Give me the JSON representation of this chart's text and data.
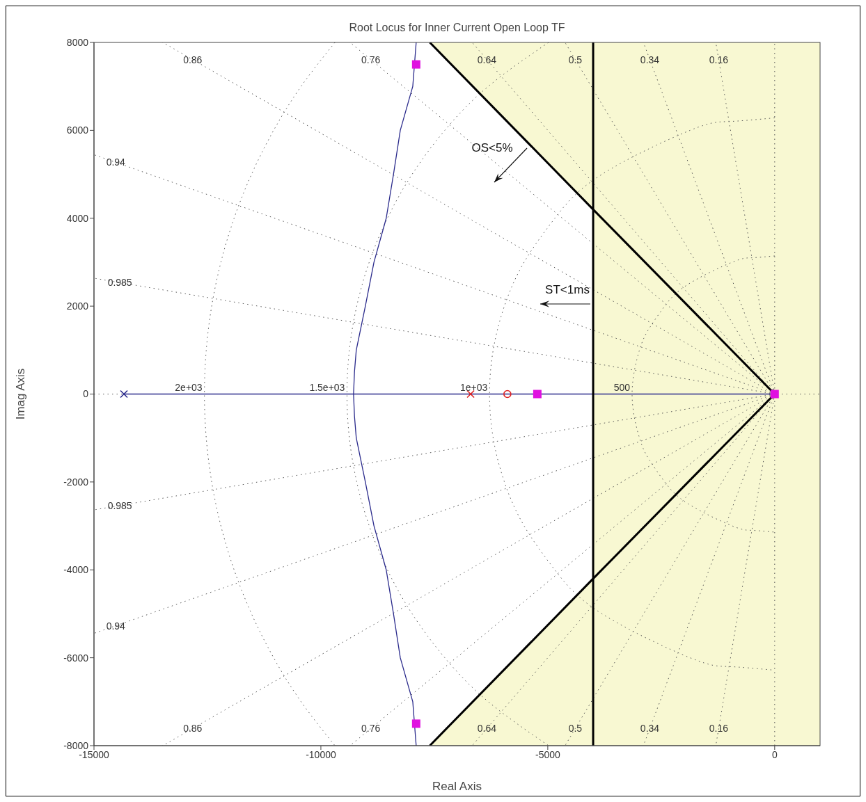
{
  "chart_data": {
    "type": "line",
    "title": "Root Locus for Inner Current Open Loop TF",
    "xlabel": "Real Axis",
    "ylabel": "Imag Axis",
    "xlim": [
      -15000,
      1000
    ],
    "xticks": [
      -15000,
      -10000,
      -5000,
      0
    ],
    "ylim": [
      -8000,
      8000
    ],
    "yticks": [
      -8000,
      -6000,
      -4000,
      -2000,
      0,
      2000,
      4000,
      6000,
      8000
    ],
    "series": [
      {
        "name": "0.86",
        "color": "#555555",
        "line_style": "dotted",
        "x": [
          0,
          -12825,
          -13482
        ],
        "values": [
          0,
          7610,
          8000
        ]
      },
      {
        "name": "0.76",
        "color": "#555555",
        "line_style": "dotted",
        "x": [
          0,
          -8901,
          -9357
        ],
        "values": [
          0,
          7610,
          8000
        ]
      },
      {
        "name": "0.64",
        "color": "#555555",
        "line_style": "dotted",
        "x": [
          0,
          -6342,
          -6667
        ],
        "values": [
          0,
          7610,
          8000
        ]
      },
      {
        "name": "0.5",
        "color": "#555555",
        "line_style": "dotted",
        "x": [
          0,
          -4394,
          -4619
        ],
        "values": [
          0,
          7610,
          8000
        ]
      },
      {
        "name": "0.34",
        "color": "#555555",
        "line_style": "dotted",
        "x": [
          0,
          -2751,
          -2892
        ],
        "values": [
          0,
          7610,
          8000
        ]
      },
      {
        "name": "0.16",
        "color": "#555555",
        "line_style": "dotted",
        "x": [
          0,
          -1234,
          -1297
        ],
        "values": [
          0,
          7610,
          8000
        ]
      },
      {
        "name": "0.94",
        "color": "#555555",
        "line_style": "dotted",
        "x": [
          0,
          -14520,
          -15000
        ],
        "values": [
          0,
          5271,
          5445
        ]
      },
      {
        "name": "0.985",
        "color": "#555555",
        "line_style": "dotted",
        "x": [
          0,
          -14430,
          -15000
        ],
        "values": [
          0,
          2536,
          2636
        ]
      },
      {
        "name": "0.985",
        "color": "#555555",
        "line_style": "dotted",
        "x": [
          0,
          -14430,
          -15000
        ],
        "values": [
          0,
          -2536,
          -2636
        ]
      },
      {
        "name": "0.94",
        "color": "#555555",
        "line_style": "dotted",
        "x": [
          0,
          -14520,
          -15000
        ],
        "values": [
          0,
          -5271,
          -5445
        ]
      },
      {
        "name": "0.86",
        "color": "#555555",
        "line_style": "dotted",
        "x": [
          0,
          -12825,
          -13482
        ],
        "values": [
          0,
          -7610,
          -8000
        ]
      },
      {
        "name": "0.76",
        "color": "#555555",
        "line_style": "dotted",
        "x": [
          0,
          -8901,
          -9357
        ],
        "values": [
          0,
          -7610,
          -8000
        ]
      },
      {
        "name": "0.64",
        "color": "#555555",
        "line_style": "dotted",
        "x": [
          0,
          -6342,
          -6667
        ],
        "values": [
          0,
          -7610,
          -8000
        ]
      },
      {
        "name": "0.5",
        "color": "#555555",
        "line_style": "dotted",
        "x": [
          0,
          -4394,
          -4619
        ],
        "values": [
          0,
          -7610,
          -8000
        ]
      },
      {
        "name": "0.34",
        "color": "#555555",
        "line_style": "dotted",
        "x": [
          0,
          -2751,
          -2892
        ],
        "values": [
          0,
          -7610,
          -8000
        ]
      },
      {
        "name": "0.16",
        "color": "#555555",
        "line_style": "dotted",
        "x": [
          0,
          -1234,
          -1297
        ],
        "values": [
          0,
          -7610,
          -8000
        ]
      },
      {
        "name": "2e+03",
        "color": "#555555",
        "line_style": "dotted",
        "x": [
          -9690,
          -10436,
          -11041,
          -11528,
          -11912,
          -12203,
          -12406,
          -12526,
          -12566,
          -12526,
          -12406,
          -12203,
          -11912,
          -11528,
          -11041,
          -10436,
          -9690
        ],
        "values": [
          8000,
          7000,
          6000,
          5000,
          4000,
          3000,
          2000,
          1000,
          0,
          -1000,
          -2000,
          -3000,
          -4000,
          -5000,
          -6000,
          -7000,
          -8000
        ]
      },
      {
        "name": "1.5e+03",
        "color": "#555555",
        "line_style": "dotted",
        "x": [
          -4983,
          -6311,
          -7269,
          -7989,
          -8534,
          -8935,
          -9210,
          -9372,
          -9425,
          -9372,
          -9210,
          -8935,
          -8534,
          -7989,
          -7269,
          -6311,
          -4983
        ],
        "values": [
          8000,
          7000,
          6000,
          5000,
          4000,
          3000,
          2000,
          1000,
          0,
          -1000,
          -2000,
          -3000,
          -4000,
          -5000,
          -6000,
          -7000,
          -8000
        ]
      },
      {
        "name": "1e+03",
        "color": "#555555",
        "line_style": "dotted",
        "x": [
          0,
          -1018,
          -1864,
          -3805,
          -4845,
          -5521,
          -5956,
          -6203,
          -6283,
          -6203,
          -5956,
          -5521,
          -4845,
          -3805,
          -1864,
          -1018,
          0
        ],
        "values": [
          6283,
          6200,
          6000,
          5000,
          4000,
          3000,
          2000,
          1000,
          0,
          -1000,
          -2000,
          -3000,
          -4000,
          -5000,
          -6000,
          -6200,
          -6283
        ]
      },
      {
        "name": "500",
        "color": "#555555",
        "line_style": "dotted",
        "x": [
          0,
          -512,
          -934,
          -1903,
          -2423,
          -2761,
          -2979,
          -3142,
          -2979,
          -2761,
          -2423,
          -1903,
          -934,
          -512,
          0
        ],
        "values": [
          3142,
          3100,
          3000,
          2500,
          2000,
          1500,
          1000,
          0,
          -1000,
          -1500,
          -2000,
          -2500,
          -3000,
          -3100,
          -3142
        ]
      },
      {
        "color": "#000000",
        "x": [
          -7600,
          -4000,
          0
        ],
        "values": [
          8000,
          4200,
          0
        ],
        "lower": [
          8000,
          4200,
          0
        ],
        "upper": [
          8000,
          8000,
          8000
        ]
      },
      {
        "color": "#000000",
        "x": [
          -7600,
          -4000,
          0
        ],
        "values": [
          -8000,
          -4200,
          0
        ],
        "lower": [
          -8000,
          -8000,
          -8000
        ],
        "upper": [
          -8000,
          -4200,
          0
        ]
      },
      {
        "color": "#2b2b8c",
        "x": [
          -14340,
          0
        ],
        "values": [
          0,
          0
        ]
      },
      {
        "color": "#2b2b8c",
        "x": [
          -7900,
          -7975,
          -8250,
          -8400,
          -8560,
          -8830,
          -9020,
          -9220,
          -9260,
          -9280,
          -9260,
          -9220,
          -9020,
          -8830,
          -8560,
          -8400,
          -8250,
          -7975,
          -7900
        ],
        "values": [
          8000,
          7000,
          6000,
          5000,
          4000,
          3000,
          2000,
          1000,
          500,
          0,
          -500,
          -1000,
          -2000,
          -3000,
          -4000,
          -5000,
          -6000,
          -7000,
          -8000
        ]
      },
      {
        "type": "scatter",
        "color": "#2b2b8c",
        "marker": "cross",
        "x": [
          -14340
        ],
        "values": [
          0
        ]
      },
      {
        "type": "scatter",
        "color": "#e02020",
        "marker": "cross",
        "x": [
          -6700
        ],
        "values": [
          0
        ]
      },
      {
        "type": "scatter",
        "color": "#e02020",
        "marker": "circle",
        "x": [
          -5890
        ],
        "values": [
          0
        ]
      },
      {
        "type": "scatter",
        "color": "#e010e0",
        "marker": "square",
        "x": [
          -7900,
          -7900,
          -5230,
          0
        ],
        "values": [
          7500,
          -7500,
          0,
          0
        ]
      }
    ],
    "ref_lines": [
      {
        "axis": "x",
        "value": -4000,
        "color": "#000000"
      },
      {
        "axis": "x",
        "value": 0,
        "color": "#555555",
        "line_style": "dotted"
      },
      {
        "axis": "y",
        "value": 0,
        "color": "#555555",
        "line_style": "dotted"
      }
    ],
    "bands": [
      {
        "axis": "x",
        "from": -4000,
        "to": 1000,
        "color": "#f8f8d2"
      }
    ],
    "annotations": [
      "OS<5%",
      "ST<1ms"
    ]
  }
}
